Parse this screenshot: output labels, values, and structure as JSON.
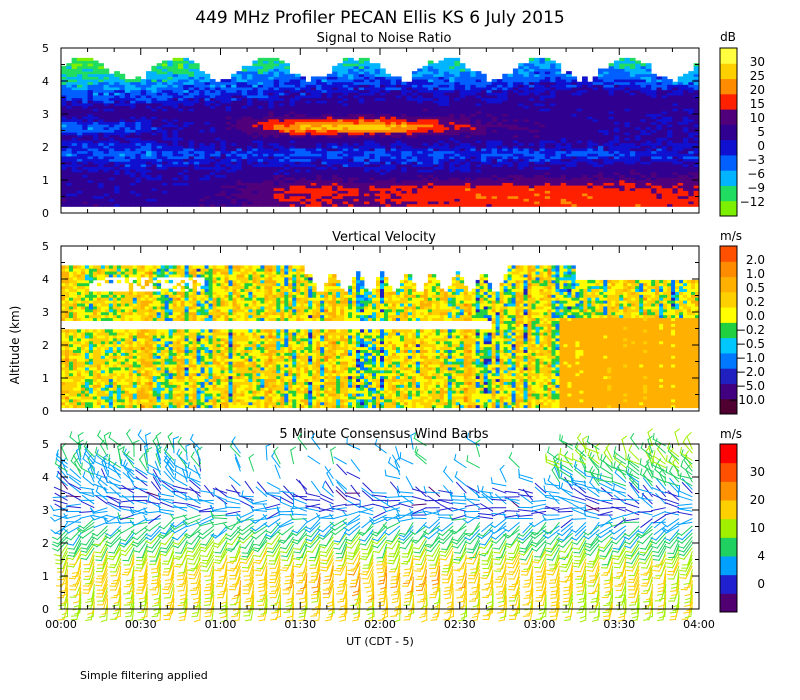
{
  "title": "449 MHz Profiler PECAN Ellis KS   6 July 2015",
  "ylabel": "Altitude (km)",
  "xlabel": "UT  (CDT - 5)",
  "footer": "Simple filtering applied",
  "x_ticks": [
    "00:00",
    "00:30",
    "01:00",
    "01:30",
    "02:00",
    "02:30",
    "03:00",
    "03:30",
    "04:00"
  ],
  "y_ticks": [
    "0",
    "1",
    "2",
    "3",
    "4",
    "5"
  ],
  "colors": {
    "snr": [
      "#7cf000",
      "#20dc60",
      "#00b4ff",
      "#0060ff",
      "#1010d0",
      "#300090",
      "#50007a",
      "#ff2000",
      "#ff8c00",
      "#ffd000",
      "#ffff40",
      "#ffffff"
    ],
    "vv": [
      "#500030",
      "#400080",
      "#2020c0",
      "#0078ff",
      "#00c8ff",
      "#20d040",
      "#ffff00",
      "#ffd000",
      "#ffb000",
      "#ff8c00",
      "#ff5000",
      "#ff0000"
    ],
    "wind": [
      "#500070",
      "#2020d0",
      "#00a0ff",
      "#20d060",
      "#a0f000",
      "#ffd000",
      "#ff9000",
      "#ff5000",
      "#ff0000"
    ]
  },
  "chart_data": [
    {
      "type": "heatmap",
      "title": "Signal to Noise Ratio",
      "unit": "dB",
      "x_range": [
        "00:00",
        "04:00"
      ],
      "ylim": [
        0,
        5
      ],
      "colorbar_labels": [
        "30",
        "25",
        "20",
        "15",
        "10",
        "5",
        "0",
        "−3",
        "−6",
        "−9",
        "−12"
      ],
      "colorbar_levels": [
        -12,
        -9,
        -6,
        -3,
        0,
        5,
        10,
        15,
        20,
        25,
        30
      ],
      "profile_hours": [
        0,
        0.5,
        1,
        1.5,
        2,
        2.5,
        3,
        3.5,
        4
      ],
      "profile_altitude_km": [
        0.3,
        0.7,
        1.2,
        1.8,
        2.3,
        2.6,
        3.0,
        3.5,
        4.0,
        4.5
      ],
      "profile_snr_db": [
        [
          3,
          2,
          2,
          -4,
          1,
          -6,
          3,
          -4,
          -8,
          -11
        ],
        [
          2,
          1,
          1,
          -5,
          1,
          -3,
          3,
          -3,
          -8,
          -11
        ],
        [
          4,
          3,
          2,
          -2,
          3,
          2,
          3,
          -2,
          -5,
          -10
        ],
        [
          10,
          12,
          2,
          -4,
          4,
          22,
          4,
          0,
          -4,
          -9
        ],
        [
          9,
          11,
          1,
          -3,
          3,
          25,
          3,
          1,
          -3,
          -8
        ],
        [
          12,
          13,
          2,
          -3,
          3,
          10,
          4,
          0,
          -4,
          -9
        ],
        [
          13,
          14,
          3,
          -4,
          3,
          3,
          2,
          1,
          -2,
          -7
        ],
        [
          13,
          12,
          4,
          -3,
          2,
          1,
          2,
          3,
          -3,
          -8
        ],
        [
          12,
          11,
          4,
          -2,
          1,
          0,
          1,
          2,
          -6,
          -10
        ]
      ]
    },
    {
      "type": "heatmap",
      "title": "Vertical Velocity",
      "unit": "m/s",
      "x_range": [
        "00:00",
        "04:00"
      ],
      "ylim": [
        0,
        5
      ],
      "colorbar_labels": [
        "2.0",
        "1.0",
        "0.5",
        "0.2",
        "0.0",
        "−0.2",
        "−0.5",
        "−1.0",
        "−2.0",
        "−5.0",
        "−10.0"
      ],
      "colorbar_levels": [
        -10,
        -5,
        -2,
        -1,
        -0.5,
        -0.2,
        0,
        0.2,
        0.5,
        1,
        2
      ],
      "data_top_km": 4.5,
      "data_gap_km": [
        2.5,
        2.7
      ]
    },
    {
      "type": "scatter",
      "title": "5 Minute Consensus Wind Barbs",
      "unit": "m/s",
      "x_range": [
        "00:00",
        "04:00"
      ],
      "ylim": [
        0,
        5
      ],
      "colorbar_labels": [
        "30",
        "20",
        "10",
        "4",
        "0"
      ],
      "colorbar_levels": [
        0,
        4,
        10,
        20,
        30
      ],
      "interval_minutes": 5,
      "profile_hours": [
        0,
        1,
        2,
        3,
        4
      ],
      "profile_altitude_km": [
        0.5,
        1.0,
        1.5,
        2.0,
        2.5,
        3.0,
        3.5,
        4.0,
        4.5
      ],
      "profile_speed_ms": [
        [
          12,
          15,
          13,
          10,
          7,
          4,
          3,
          6,
          8
        ],
        [
          13,
          16,
          14,
          11,
          8,
          5,
          4,
          5,
          7
        ],
        [
          14,
          17,
          15,
          11,
          8,
          4,
          3,
          5,
          6
        ],
        [
          13,
          15,
          14,
          10,
          7,
          3,
          4,
          8,
          10
        ],
        [
          12,
          14,
          13,
          9,
          6,
          4,
          5,
          9,
          11
        ]
      ],
      "profile_direction_deg": [
        [
          190,
          195,
          200,
          210,
          230,
          280,
          300,
          320,
          330
        ],
        [
          190,
          195,
          200,
          210,
          230,
          270,
          300,
          320,
          330
        ],
        [
          185,
          190,
          200,
          205,
          220,
          270,
          300,
          310,
          320
        ],
        [
          190,
          195,
          200,
          210,
          230,
          280,
          300,
          310,
          320
        ],
        [
          190,
          195,
          200,
          210,
          230,
          280,
          300,
          310,
          320
        ]
      ]
    }
  ]
}
